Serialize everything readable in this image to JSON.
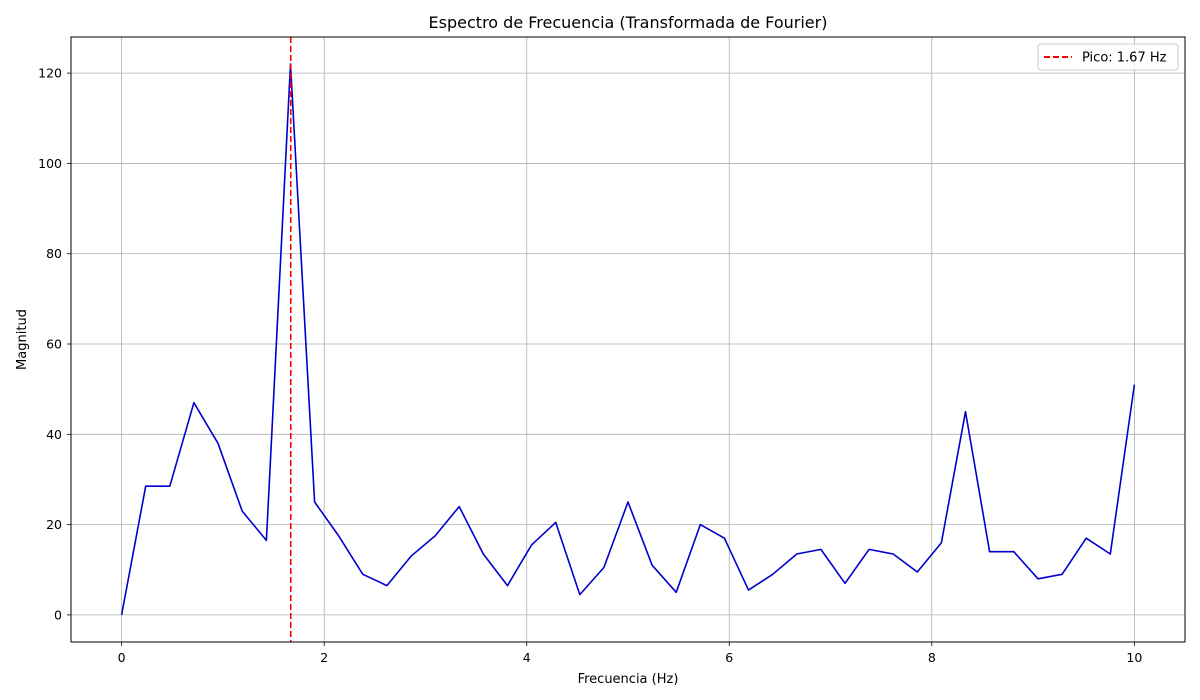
{
  "chart_data": {
    "type": "line",
    "title": "Espectro de Frecuencia (Transformada de Fourier)",
    "xlabel": "Frecuencia (Hz)",
    "ylabel": "Magnitud",
    "xlim": [
      -0.5,
      10.5
    ],
    "ylim": [
      -6,
      128
    ],
    "xticks": [
      0,
      2,
      4,
      6,
      8,
      10
    ],
    "yticks": [
      0,
      20,
      40,
      60,
      80,
      100,
      120
    ],
    "grid": true,
    "legend_position": "top-right",
    "series": [
      {
        "color": "#0000cc",
        "x": [
          0,
          0.238,
          0.476,
          0.714,
          0.952,
          1.19,
          1.429,
          1.667,
          1.905,
          2.143,
          2.381,
          2.619,
          2.857,
          3.095,
          3.333,
          3.571,
          3.81,
          4.048,
          4.286,
          4.524,
          4.762,
          5.0,
          5.238,
          5.476,
          5.714,
          5.952,
          6.19,
          6.429,
          6.667,
          6.905,
          7.143,
          7.381,
          7.619,
          7.857,
          8.095,
          8.333,
          8.571,
          8.81,
          9.048,
          9.286,
          9.524,
          9.762,
          10.0
        ],
        "y": [
          0,
          28.5,
          28.5,
          47,
          38,
          23,
          16.5,
          122,
          25,
          17.5,
          9,
          6.5,
          13,
          17.5,
          24,
          13.5,
          6.5,
          15.5,
          20.5,
          4.5,
          10.5,
          25,
          11,
          5,
          20,
          17,
          5.5,
          9,
          13.5,
          14.5,
          7,
          14.5,
          13.5,
          9.5,
          16,
          45,
          14,
          14,
          8,
          9,
          17,
          13.5,
          51
        ]
      }
    ],
    "markers": [
      {
        "type": "vline",
        "x": 1.67,
        "color": "#ff0000",
        "style": "dashed",
        "label": "Pico: 1.67 Hz"
      }
    ]
  }
}
